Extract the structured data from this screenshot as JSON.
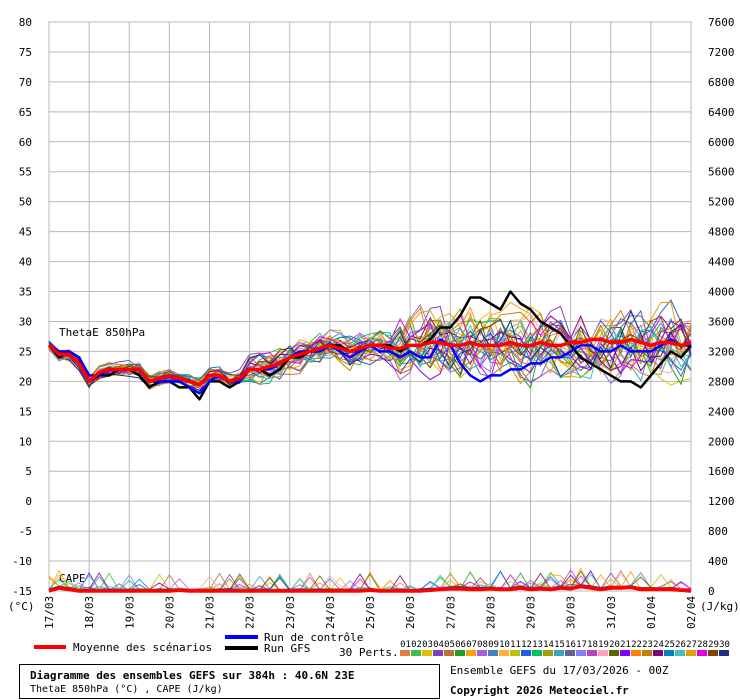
{
  "chart_data": {
    "type": "line",
    "title": "Diagramme des ensembles GEFS sur 384h : 40.6N 23E",
    "subtitle": "ThetaE 850hPa (°C) , CAPE (J/kg)",
    "run_info": "Ensemble GEFS du 17/03/2026 - 00Z",
    "copyright": "Copyright 2026 Meteociel.fr",
    "left_axis": {
      "unit": "(°C)",
      "ticks": [
        "80",
        "75",
        "70",
        "65",
        "60",
        "55",
        "50",
        "45",
        "40",
        "35",
        "30",
        "25",
        "20",
        "15",
        "10",
        "5",
        "0",
        "-5",
        "-10",
        "-15"
      ],
      "ylim": [
        -15,
        80
      ]
    },
    "right_axis": {
      "unit": "(J/kg)",
      "ticks": [
        "7600",
        "7200",
        "6800",
        "6400",
        "6000",
        "5600",
        "5200",
        "4800",
        "4400",
        "4000",
        "3600",
        "3200",
        "2800",
        "2400",
        "2000",
        "1600",
        "1200",
        "800",
        "400",
        "0"
      ],
      "ylim": [
        0,
        7600
      ]
    },
    "x_labels": [
      "17/03",
      "18/03",
      "19/03",
      "20/03",
      "21/03",
      "22/03",
      "23/03",
      "24/03",
      "25/03",
      "26/03",
      "27/03",
      "28/03",
      "29/03",
      "30/03",
      "31/03",
      "01/04",
      "02/04"
    ],
    "series_labels": {
      "thetae": "ThetaE 850hPa",
      "cape": "CAPE"
    },
    "legend": {
      "mean": {
        "label": "Moyenne des scénarios",
        "color": "#ff0000"
      },
      "control": {
        "label": "Run de contrôle",
        "color": "#0000ff"
      },
      "gfs": {
        "label": "Run GFS",
        "color": "#000000"
      },
      "perts_label": "30 Perts.",
      "pert_ids": [
        "01",
        "02",
        "03",
        "04",
        "05",
        "06",
        "07",
        "08",
        "09",
        "10",
        "11",
        "12",
        "13",
        "14",
        "15",
        "16",
        "17",
        "18",
        "19",
        "20",
        "21",
        "22",
        "23",
        "24",
        "25",
        "26",
        "27",
        "28",
        "29",
        "30"
      ],
      "pert_colors": [
        "#e08040",
        "#40c040",
        "#e0c000",
        "#8040c0",
        "#c07030",
        "#20a020",
        "#ffa000",
        "#a060e0",
        "#4080c0",
        "#ffb030",
        "#c0c000",
        "#2060e0",
        "#00c060",
        "#a0a000",
        "#40a0c0",
        "#6060a0",
        "#8080ff",
        "#c040c0",
        "#ffa0c0",
        "#606000",
        "#8000ff",
        "#ff8000",
        "#c08000",
        "#800080",
        "#0080c0",
        "#40c0c0",
        "#e0a000",
        "#e000e0",
        "#804000",
        "#203080"
      ]
    },
    "gfs_run": [
      26,
      24,
      25,
      24,
      20,
      21,
      21,
      22,
      22,
      21,
      19,
      20,
      20,
      19,
      19,
      17,
      20,
      20,
      19,
      20,
      22,
      22,
      21,
      22,
      24,
      24,
      25,
      25,
      26,
      26,
      25,
      25,
      26,
      26,
      26,
      25,
      26,
      26,
      27,
      29,
      29,
      31,
      34,
      34,
      33,
      32,
      35,
      33,
      32,
      30,
      29,
      28,
      26,
      24,
      23,
      22,
      21,
      20,
      20,
      19,
      21,
      23,
      25,
      24,
      26
    ],
    "control_run": [
      26,
      25,
      25,
      24,
      21,
      21,
      22,
      22,
      22,
      22,
      20,
      20,
      20,
      20,
      19,
      18,
      20,
      21,
      20,
      20,
      22,
      22,
      22,
      23,
      24,
      25,
      25,
      25,
      26,
      25,
      24,
      25,
      26,
      25,
      25,
      24,
      25,
      24,
      24,
      27,
      26,
      23,
      21,
      20,
      21,
      21,
      22,
      22,
      23,
      23,
      24,
      24,
      25,
      26,
      26,
      25,
      25,
      26,
      25,
      25,
      25,
      26,
      27,
      26,
      26
    ],
    "ensemble_mean": [
      26,
      24.5,
      24.5,
      23,
      20,
      21.5,
      22,
      22,
      22,
      22,
      20,
      20.5,
      21,
      20.5,
      20,
      19.5,
      21,
      21,
      20,
      20.5,
      22,
      22,
      22.5,
      23,
      24,
      24.5,
      25,
      25.5,
      26,
      25.5,
      25,
      25.5,
      26,
      26,
      25.5,
      25.5,
      26,
      26,
      26.5,
      26.5,
      26,
      26,
      26.5,
      26,
      26,
      26,
      26.5,
      26,
      26,
      26.5,
      26,
      26,
      26.5,
      26.5,
      27,
      27,
      26.5,
      26.5,
      27,
      26.5,
      26,
      26.5,
      26.5,
      26,
      26.5
    ],
    "cape_mean_jkg": [
      0,
      40,
      20,
      0,
      0,
      0,
      0,
      0,
      0,
      0,
      0,
      0,
      0,
      10,
      0,
      0,
      0,
      0,
      0,
      0,
      0,
      0,
      0,
      0,
      0,
      0,
      0,
      0,
      0,
      0,
      0,
      0,
      10,
      0,
      0,
      0,
      0,
      0,
      10,
      20,
      30,
      30,
      20,
      20,
      30,
      20,
      20,
      40,
      20,
      30,
      20,
      40,
      30,
      60,
      40,
      20,
      40,
      40,
      50,
      20,
      20,
      20,
      20,
      10,
      0
    ]
  }
}
